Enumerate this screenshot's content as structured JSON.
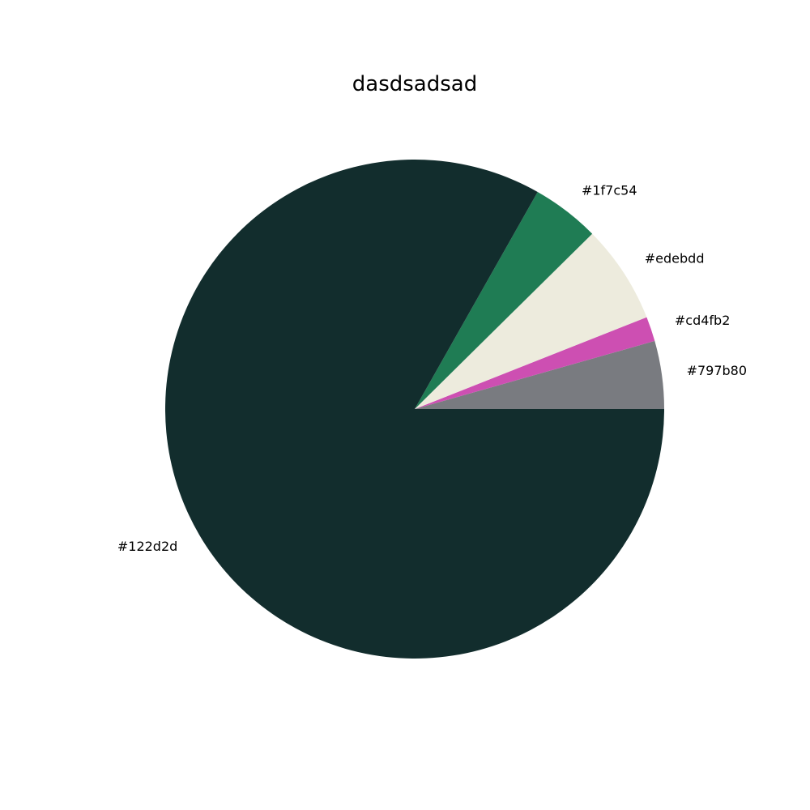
{
  "chart_data": {
    "type": "pie",
    "title": "dasdsadsad",
    "start_angle_deg": 0,
    "direction": "counterclockwise",
    "slices": [
      {
        "label": "#797b80",
        "value": 4.4,
        "color": "#797b80"
      },
      {
        "label": "#cd4fb2",
        "value": 1.6,
        "color": "#cd4fb2"
      },
      {
        "label": "#edebdd",
        "value": 6.4,
        "color": "#edebdd"
      },
      {
        "label": "#1f7c54",
        "value": 4.4,
        "color": "#1f7c54"
      },
      {
        "label": "#122d2d",
        "value": 83.2,
        "color": "#122d2d"
      }
    ]
  }
}
